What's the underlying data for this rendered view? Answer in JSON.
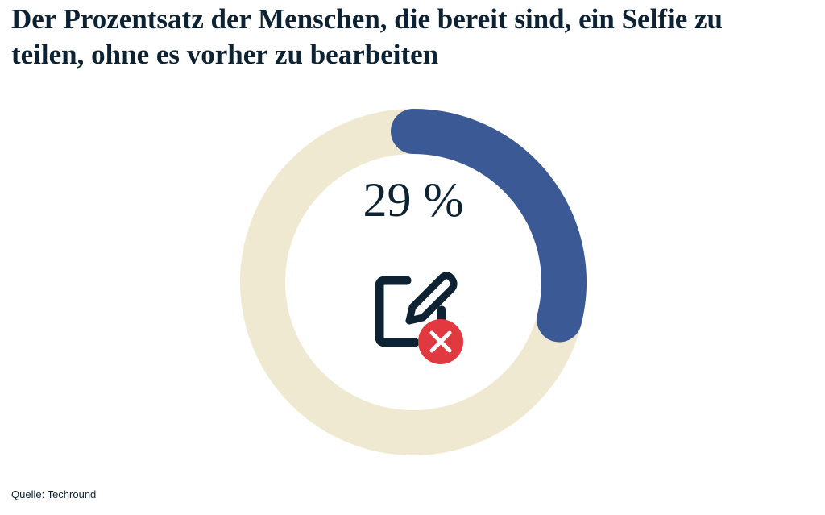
{
  "chart_data": {
    "type": "donut",
    "title": "Der Prozentsatz der Menschen, die bereit sind, ein Selfie zu teilen, ohne es vorher zu bearbeiten",
    "values": [
      29
    ],
    "value_labels": [
      "29 %"
    ],
    "color": "#3a5995",
    "track_color": "#f0e9d1",
    "source": "Quelle: Techround"
  }
}
